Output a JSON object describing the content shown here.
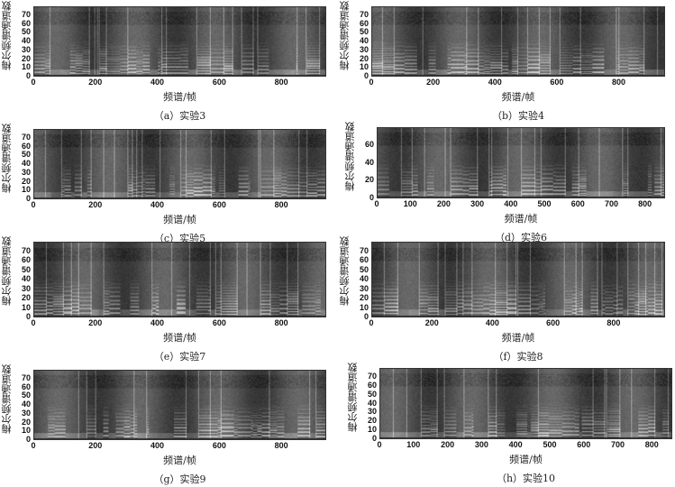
{
  "chart_data": [
    {
      "type": "heatmap",
      "panel": "a",
      "caption": "（a）实验3",
      "xlabel": "频谱/帧",
      "ylabel": "梅尔频谱通道数",
      "xlim": [
        0,
        945
      ],
      "ylim": [
        0,
        80
      ],
      "xticks": [
        0,
        200,
        400,
        600,
        800
      ],
      "yticks": [
        0,
        10,
        20,
        30,
        40,
        50,
        60,
        70
      ],
      "colormap": "grayscale"
    },
    {
      "type": "heatmap",
      "panel": "b",
      "caption": "（b）实验4",
      "xlabel": "频谱/帧",
      "ylabel": "梅尔频谱通道数",
      "xlim": [
        0,
        950
      ],
      "ylim": [
        0,
        80
      ],
      "xticks": [
        0,
        200,
        400,
        600,
        800
      ],
      "yticks": [
        0,
        10,
        20,
        30,
        40,
        50,
        60,
        70
      ],
      "colormap": "grayscale"
    },
    {
      "type": "heatmap",
      "panel": "c",
      "caption": "（c）实验5",
      "xlabel": "频谱/帧",
      "ylabel": "梅尔频谱通道数",
      "xlim": [
        0,
        945
      ],
      "ylim": [
        0,
        80
      ],
      "xticks": [
        0,
        200,
        400,
        600,
        800
      ],
      "yticks": [
        0,
        10,
        20,
        30,
        40,
        50,
        60,
        70
      ],
      "colormap": "grayscale"
    },
    {
      "type": "heatmap",
      "panel": "d",
      "caption": "（d）实验6",
      "xlabel": "频谱/帧",
      "ylabel": "梅尔频谱通道数",
      "xlim": [
        0,
        860
      ],
      "ylim": [
        0,
        80
      ],
      "xticks": [
        0,
        100,
        200,
        300,
        400,
        500,
        600,
        700,
        800
      ],
      "yticks": [
        0,
        20,
        40,
        60
      ],
      "colormap": "grayscale"
    },
    {
      "type": "heatmap",
      "panel": "e",
      "caption": "（e）实验7",
      "xlabel": "频谱/帧",
      "ylabel": "梅尔频谱通道数",
      "xlim": [
        0,
        945
      ],
      "ylim": [
        0,
        80
      ],
      "xticks": [
        0,
        200,
        400,
        600,
        800
      ],
      "yticks": [
        0,
        10,
        20,
        30,
        40,
        50,
        60,
        70
      ],
      "colormap": "grayscale"
    },
    {
      "type": "heatmap",
      "panel": "f",
      "caption": "（f）实验8",
      "xlabel": "频谱/帧",
      "ylabel": "梅尔频谱通道数",
      "xlim": [
        0,
        970
      ],
      "ylim": [
        0,
        80
      ],
      "xticks": [
        0,
        200,
        400,
        600,
        800
      ],
      "yticks": [
        0,
        10,
        20,
        30,
        40,
        50,
        60,
        70
      ],
      "colormap": "grayscale"
    },
    {
      "type": "heatmap",
      "panel": "g",
      "caption": "（g）实验9",
      "xlabel": "频谱/帧",
      "ylabel": "梅尔频谱通道数",
      "xlim": [
        0,
        945
      ],
      "ylim": [
        0,
        80
      ],
      "xticks": [
        0,
        200,
        400,
        600,
        800
      ],
      "yticks": [
        0,
        10,
        20,
        30,
        40,
        50,
        60,
        70
      ],
      "colormap": "grayscale"
    },
    {
      "type": "heatmap",
      "panel": "h",
      "caption": "（h）实验10",
      "xlabel": "频谱/帧",
      "ylabel": "梅尔频谱通道数",
      "xlim": [
        0,
        860
      ],
      "ylim": [
        0,
        80
      ],
      "xticks": [
        0,
        100,
        200,
        300,
        400,
        500,
        600,
        700,
        800
      ],
      "yticks": [
        0,
        10,
        20,
        30,
        40,
        50,
        60,
        70
      ],
      "colormap": "grayscale"
    }
  ]
}
